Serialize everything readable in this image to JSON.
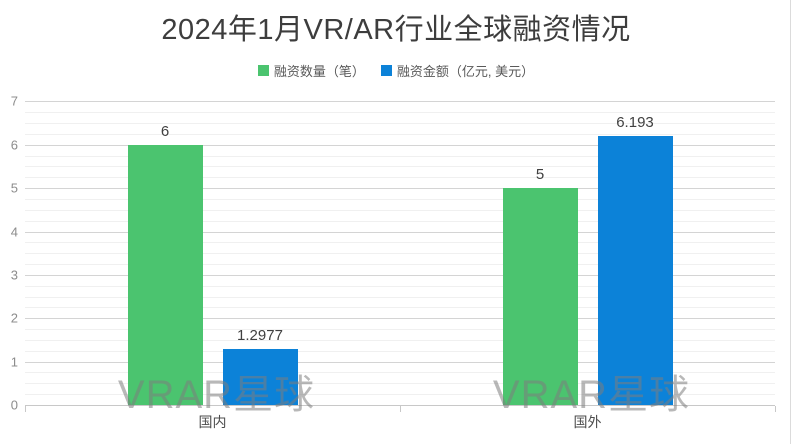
{
  "chart": {
    "title": "2024年1月VR/AR行业全球融资情况",
    "watermark_text": "VRAR星球"
  },
  "chart_data": {
    "type": "bar",
    "title": "2024年1月VR/AR行业全球融资情况",
    "categories": [
      "国内",
      "国外"
    ],
    "series": [
      {
        "name": "融资数量（笔）",
        "color": "#4bc46f",
        "values": [
          6,
          5
        ],
        "labels": [
          "6",
          "5"
        ]
      },
      {
        "name": "融资金额（亿元, 美元）",
        "color": "#0c82d8",
        "values": [
          1.2977,
          6.193
        ],
        "labels": [
          "1.2977",
          "6.193"
        ]
      }
    ],
    "xlabel": "",
    "ylabel": "",
    "ylim": [
      0,
      7
    ],
    "y_major_step": 1,
    "y_minor_step": 0.25,
    "y_tick_labels": [
      "0",
      "1",
      "2",
      "3",
      "4",
      "5",
      "6",
      "7"
    ],
    "grid": true,
    "legend_position": "top"
  },
  "colors": {
    "series_count": "#4bc46f",
    "series_amount": "#0c82d8",
    "grid_major": "#d4d4d4",
    "grid_minor": "#f0f0f0",
    "axis_line": "#c8c8c8",
    "title_text": "#3d3d3d",
    "tick_text": "#8c8c8c",
    "value_label_text": "#404040",
    "watermark_text": "#7d7d7d"
  }
}
